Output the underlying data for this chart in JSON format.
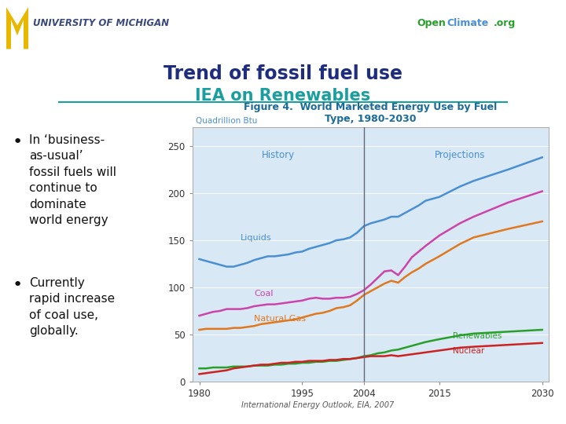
{
  "title1": "Trend of fossil fuel use",
  "title2": "IEA on Renewables",
  "fig_title": "Figure 4.  World Marketed Energy Use by Fuel\nType, 1980-2030",
  "ylabel": "Quadrillion Btu",
  "xlabel_ticks": [
    1980,
    1995,
    2004,
    2015,
    2030
  ],
  "ylim": [
    0,
    270
  ],
  "yticks": [
    0,
    50,
    100,
    150,
    200,
    250
  ],
  "history_label": "History",
  "projection_label": "Projections",
  "divider_year": 2004,
  "bullet1": "In ‘business-\nas-usual’\nfossil fuels will\ncontinue to\ndominate\nworld energy",
  "bullet2": "Currently\nrapid increase\nof coal use,\nglobally.",
  "footer": "International Energy Outlook, EIA, 2007",
  "univ_text": "UNIVERSITY OF MICHIGAN",
  "openclimate_open": "Open",
  "openclimate_climate": "Climate",
  "openclimate_org": ".org",
  "bg_color": "#ffffff",
  "header_bar_color": "#1e2d7d",
  "chart_bg": "#d8e8f4",
  "title1_color": "#1e2d7d",
  "title2_color": "#1a9e9e",
  "liquids_color": "#4a8fd4",
  "coal_color": "#cc44aa",
  "natural_gas_color": "#e07820",
  "renewables_color": "#2a9e2a",
  "nuclear_color": "#cc2222",
  "fig_title_color": "#1a6a9a",
  "years": [
    1980,
    1981,
    1982,
    1983,
    1984,
    1985,
    1986,
    1987,
    1988,
    1989,
    1990,
    1991,
    1992,
    1993,
    1994,
    1995,
    1996,
    1997,
    1998,
    1999,
    2000,
    2001,
    2002,
    2003,
    2004,
    2005,
    2006,
    2007,
    2008,
    2009,
    2010,
    2011,
    2012,
    2013,
    2015,
    2018,
    2020,
    2025,
    2030
  ],
  "liquids": [
    130,
    128,
    126,
    124,
    122,
    122,
    124,
    126,
    129,
    131,
    133,
    133,
    134,
    135,
    137,
    138,
    141,
    143,
    145,
    147,
    150,
    151,
    153,
    158,
    165,
    168,
    170,
    172,
    175,
    175,
    179,
    183,
    187,
    192,
    196,
    207,
    213,
    225,
    238
  ],
  "coal": [
    70,
    72,
    74,
    75,
    77,
    77,
    77,
    78,
    80,
    81,
    82,
    82,
    83,
    84,
    85,
    86,
    88,
    89,
    88,
    88,
    89,
    89,
    90,
    93,
    97,
    103,
    110,
    117,
    118,
    113,
    122,
    132,
    138,
    144,
    155,
    168,
    175,
    190,
    202
  ],
  "natural_gas": [
    55,
    56,
    56,
    56,
    56,
    57,
    57,
    58,
    59,
    61,
    62,
    63,
    64,
    65,
    66,
    68,
    70,
    72,
    73,
    75,
    78,
    79,
    81,
    86,
    92,
    96,
    100,
    104,
    107,
    105,
    111,
    116,
    120,
    125,
    133,
    146,
    153,
    162,
    170
  ],
  "renewables": [
    14,
    14,
    15,
    15,
    15,
    16,
    16,
    16,
    17,
    17,
    17,
    18,
    18,
    19,
    19,
    20,
    20,
    21,
    21,
    22,
    22,
    23,
    24,
    25,
    27,
    28,
    30,
    31,
    33,
    34,
    36,
    38,
    40,
    42,
    45,
    49,
    51,
    53,
    55
  ],
  "nuclear": [
    8,
    9,
    10,
    11,
    12,
    14,
    15,
    16,
    17,
    18,
    18,
    19,
    20,
    20,
    21,
    21,
    22,
    22,
    22,
    23,
    23,
    24,
    24,
    25,
    26,
    27,
    27,
    27,
    28,
    27,
    28,
    29,
    30,
    31,
    33,
    36,
    37,
    39,
    41
  ]
}
